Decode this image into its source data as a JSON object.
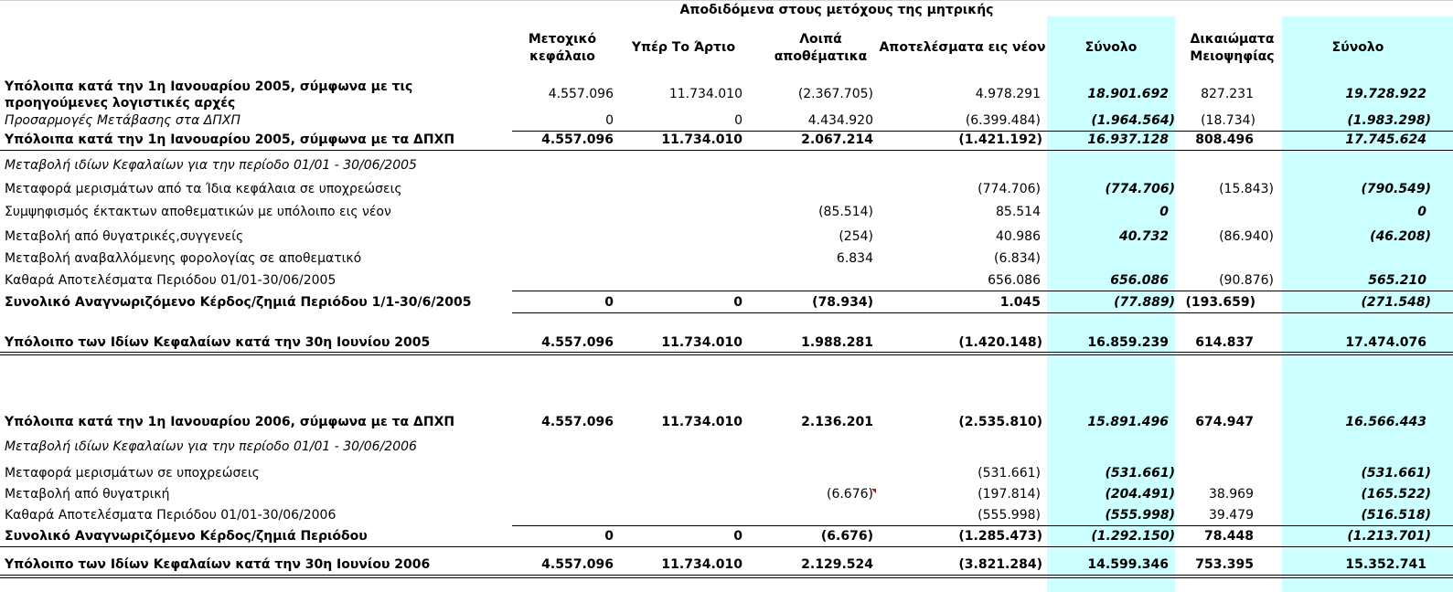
{
  "header": {
    "super_title": "Αποδιδόμενα στους μετόχους της μητρικής",
    "columns": {
      "c1": [
        "Μετοχικό",
        "κεφάλαιο"
      ],
      "c2": "Υπέρ Το Άρτιο",
      "c3": [
        "Λοιπά",
        "αποθέματικα"
      ],
      "c4": "Αποτελέσματα εις νέον",
      "c5": "Σύνολο",
      "c6": [
        "Δικαιώματα",
        "Μειοψηφίας"
      ],
      "c7": "Σύνολο"
    }
  },
  "rows": {
    "r1": {
      "label": [
        "Υπόλοιπα κατά την 1η Ιανουαρίου 2005, σύμφωνα με τις",
        "προηγούμενες λογιστικές αρχές"
      ],
      "c1": "4.557.096",
      "c2": "11.734.010",
      "c3": "(2.367.705)",
      "c4": "4.978.291",
      "c5": "18.901.692",
      "c6": "827.231",
      "c7": "19.728.922"
    },
    "r2": {
      "label": "Προσαρμογές Μετάβασης στα ΔΠΧΠ",
      "c1": "0",
      "c2": "0",
      "c3": "4.434.920",
      "c4": "(6.399.484)",
      "c5": "(1.964.564)",
      "c6": "(18.734)",
      "c7": "(1.983.298)"
    },
    "r3": {
      "label": "Υπόλοιπα κατά την 1η Ιανουαρίου 2005, σύμφωνα με τα ΔΠΧΠ",
      "c1": "4.557.096",
      "c2": "11.734.010",
      "c3": "2.067.214",
      "c4": "(1.421.192)",
      "c5": "16.937.128",
      "c6": "808.496",
      "c7": "17.745.624"
    },
    "r4": {
      "label": "Μεταβολή ιδίων Κεφαλαίων για την περίοδο 01/01 - 30/06/2005"
    },
    "r5": {
      "label": "Μεταφορά μερισμάτων από τα Ίδια κεφάλαια σε υποχρεώσεις",
      "c4": "(774.706)",
      "c5": "(774.706)",
      "c6": "(15.843)",
      "c7": "(790.549)"
    },
    "r6": {
      "label": "Συμψηφισμός έκτακτων αποθεματικών με υπόλοιπο εις νέον",
      "c3": "(85.514)",
      "c4": "85.514",
      "c5": "0",
      "c7": "0"
    },
    "r7": {
      "label": "Μεταβολή από θυγατρικές,συγγενείς",
      "c3": "(254)",
      "c4": "40.986",
      "c5": "40.732",
      "c6": "(86.940)",
      "c7": "(46.208)"
    },
    "r8": {
      "label": "Μεταβολή αναβαλλόμενης φορολογίας σε αποθεματικό",
      "c3": "6.834",
      "c4": "(6.834)"
    },
    "r9": {
      "label": "Καθαρά Αποτελέσματα Περιόδου 01/01-30/06/2005",
      "c4": "656.086",
      "c5": "656.086",
      "c6": "(90.876)",
      "c7": "565.210"
    },
    "r10": {
      "label": "Συνολικό Αναγνωριζόμενο Κέρδος/ζημιά Περιόδου 1/1-30/6/2005",
      "c1": "0",
      "c2": "0",
      "c3": "(78.934)",
      "c4": "1.045",
      "c5": "(77.889)",
      "c6": "(193.659)",
      "c7": "(271.548)"
    },
    "r11": {
      "label": "Υπόλοιπο των Ιδίων Κεφαλαίων κατά την 30η  Ιουνίου 2005",
      "c1": "4.557.096",
      "c2": "11.734.010",
      "c3": "1.988.281",
      "c4": "(1.420.148)",
      "c5": "16.859.239",
      "c6": "614.837",
      "c7": "17.474.076"
    },
    "r12": {
      "label": "Υπόλοιπα κατά την 1η Ιανουαρίου 2006, σύμφωνα με τα ΔΠΧΠ",
      "c1": "4.557.096",
      "c2": "11.734.010",
      "c3": "2.136.201",
      "c4": "(2.535.810)",
      "c5": "15.891.496",
      "c6": "674.947",
      "c7": "16.566.443"
    },
    "r13": {
      "label": "Μεταβολή ιδίων Κεφαλαίων για την περίοδο 01/01 - 30/06/2006"
    },
    "r14": {
      "label": "Μεταφορά μερισμάτων σε υποχρεώσεις",
      "c4": "(531.661)",
      "c5": "(531.661)",
      "c7": "(531.661)"
    },
    "r15": {
      "label": "Μεταβολή από θυγατρική",
      "c3": "(6.676)",
      "c4": "(197.814)",
      "c5": "(204.491)",
      "c6": "38.969",
      "c7": "(165.522)"
    },
    "r16": {
      "label": "Καθαρά Αποτελέσματα Περιόδου 01/01-30/06/2006",
      "c4": "(555.998)",
      "c5": "(555.998)",
      "c6": "39.479",
      "c7": "(516.518)"
    },
    "r17": {
      "label": "Συνολικό Αναγνωριζόμενο Κέρδος/ζημιά Περιόδου",
      "c1": "0",
      "c2": "0",
      "c3": "(6.676)",
      "c4": "(1.285.473)",
      "c5": "(1.292.150)",
      "c6": "78.448",
      "c7": "(1.213.701)"
    },
    "r18": {
      "label": "Υπόλοιπο των Ιδίων Κεφαλαίων κατά την 30η  Ιουνίου 2006",
      "c1": "4.557.096",
      "c2": "11.734.010",
      "c3": "2.129.524",
      "c4": "(3.821.284)",
      "c5": "14.599.346",
      "c6": "753.395",
      "c7": "15.352.741"
    }
  }
}
